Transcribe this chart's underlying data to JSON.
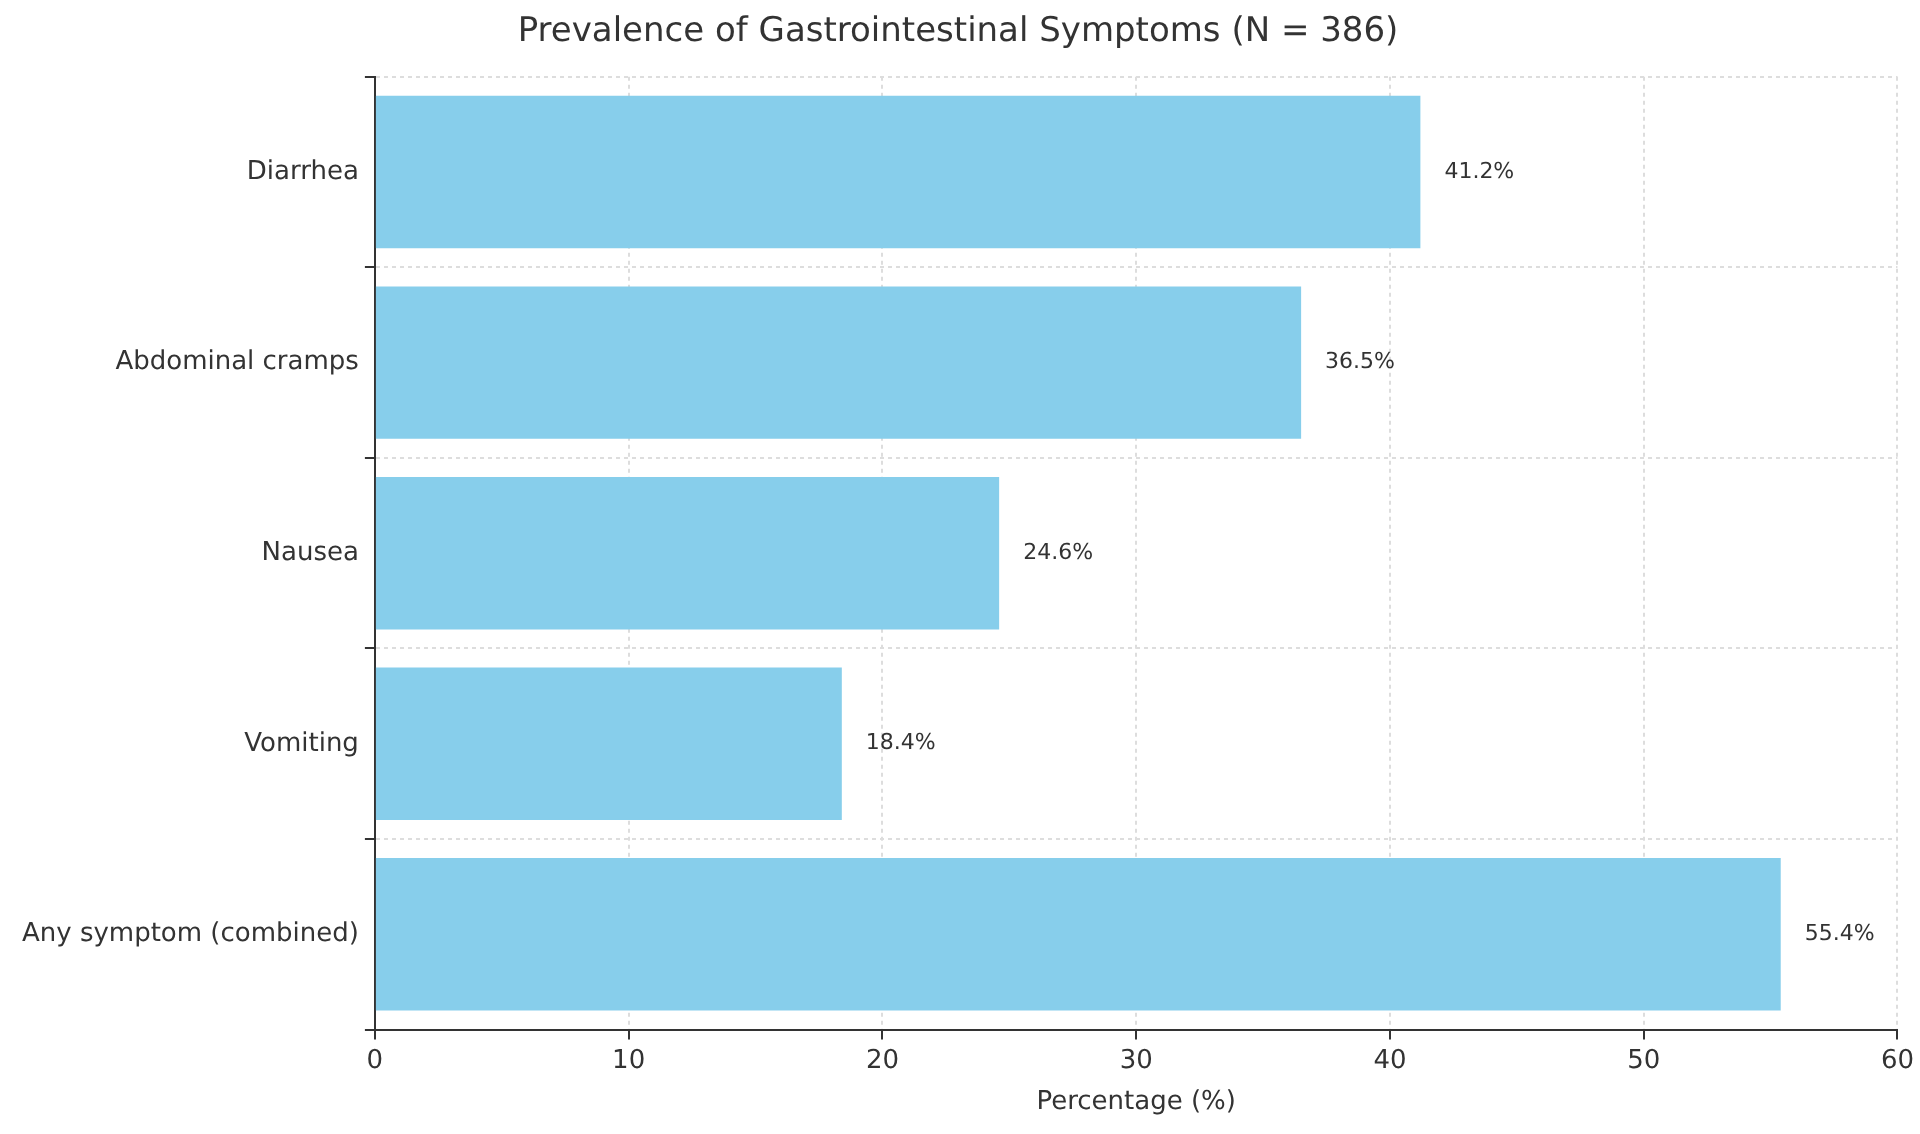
{
  "chart_data": {
    "type": "bar",
    "orientation": "horizontal",
    "title": "Prevalence of Gastrointestinal Symptoms (N = 386)",
    "xlabel": "Percentage (%)",
    "categories": [
      "Diarrhea",
      "Abdominal cramps",
      "Nausea",
      "Vomiting",
      "Any symptom (combined)"
    ],
    "values": [
      41.2,
      36.5,
      24.6,
      18.4,
      55.4
    ],
    "value_labels": [
      "41.2%",
      "36.5%",
      "24.6%",
      "18.4%",
      "55.4%"
    ],
    "color": "#87ceeb",
    "xlim": [
      0,
      60
    ],
    "xticks": [
      0,
      10,
      20,
      30,
      40,
      50,
      60
    ],
    "grid": true
  }
}
